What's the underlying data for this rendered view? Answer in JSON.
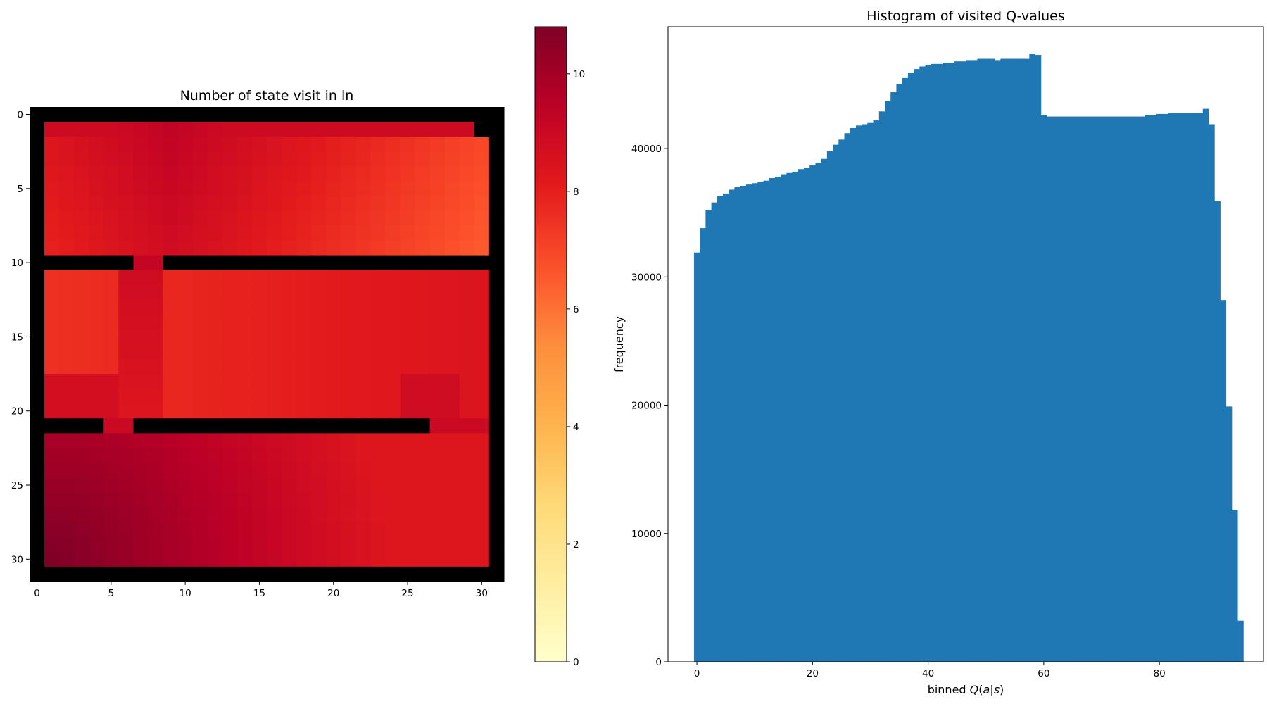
{
  "chart_data": [
    {
      "type": "heatmap",
      "title": "Number of state visit in ln",
      "xlabel": "",
      "ylabel": "",
      "grid_size": [
        32,
        32
      ],
      "xlim": [
        -0.5,
        31.5
      ],
      "ylim": [
        31.5,
        -0.5
      ],
      "xticks": [
        0,
        5,
        10,
        15,
        20,
        25,
        30
      ],
      "yticks": [
        0,
        5,
        10,
        15,
        20,
        25,
        30
      ],
      "colormap": "YlOrRd",
      "colorbar": {
        "min": 0,
        "max": 10.8,
        "ticks": [
          0,
          2,
          4,
          6,
          8,
          10
        ]
      },
      "wall_color": "#000000",
      "rooms": [
        {
          "name": "top",
          "row_range": [
            1,
            9
          ],
          "col_range": [
            1,
            30
          ],
          "value_range": [
            6.2,
            9.3
          ]
        },
        {
          "name": "middle",
          "row_range": [
            11,
            20
          ],
          "col_range": [
            1,
            30
          ],
          "value_range": [
            7.0,
            8.8
          ]
        },
        {
          "name": "bottom",
          "row_range": [
            22,
            30
          ],
          "col_range": [
            1,
            30
          ],
          "value_range": [
            8.3,
            10.8
          ]
        }
      ],
      "walls": {
        "border": true,
        "horizontal": [
          {
            "row": 10,
            "cols": [
              [
                0,
                6
              ],
              [
                9,
                31
              ]
            ],
            "openings": [
              7,
              8
            ]
          },
          {
            "row": 21,
            "cols": [
              [
                0,
                4
              ],
              [
                7,
                26
              ]
            ],
            "openings": [
              5,
              6,
              27,
              28,
              29,
              30
            ]
          }
        ],
        "blocked_cells": [
          [
            1,
            30
          ]
        ]
      }
    },
    {
      "type": "bar",
      "title": "Histogram of visited Q-values",
      "xlabel": "binned Q(a|s)",
      "xlabel_parts": {
        "prefix": "binned ",
        "italic": "Q",
        "rest": "(",
        "italic2": "a",
        "sep": "|",
        "italic3": "s",
        "close": ")"
      },
      "ylabel": "frequency",
      "xlim": [
        -5,
        98
      ],
      "ylim": [
        0,
        49500
      ],
      "xticks": [
        0,
        20,
        40,
        60,
        80
      ],
      "yticks": [
        0,
        10000,
        20000,
        30000,
        40000
      ],
      "bar_color": "#1f77b4",
      "bin_start": -0.5,
      "bin_width": 1,
      "values": [
        31900,
        33800,
        35200,
        35800,
        36300,
        36500,
        36800,
        37000,
        37100,
        37200,
        37300,
        37400,
        37500,
        37700,
        37800,
        38000,
        38100,
        38200,
        38400,
        38500,
        38700,
        38900,
        39200,
        39800,
        40300,
        40700,
        41200,
        41600,
        41800,
        41900,
        42000,
        42200,
        42900,
        43700,
        44400,
        45000,
        45500,
        45900,
        46200,
        46400,
        46500,
        46600,
        46600,
        46700,
        46700,
        46800,
        46800,
        46900,
        46900,
        47000,
        47000,
        47000,
        46900,
        47000,
        47000,
        47000,
        47000,
        47000,
        47400,
        47300,
        42600,
        42500,
        42500,
        42500,
        42500,
        42500,
        42500,
        42500,
        42500,
        42500,
        42500,
        42500,
        42500,
        42500,
        42500,
        42500,
        42500,
        42500,
        42600,
        42600,
        42700,
        42700,
        42800,
        42800,
        42800,
        42800,
        42800,
        42800,
        43100,
        41900,
        35900,
        28200,
        19900,
        11800,
        3200
      ]
    }
  ]
}
